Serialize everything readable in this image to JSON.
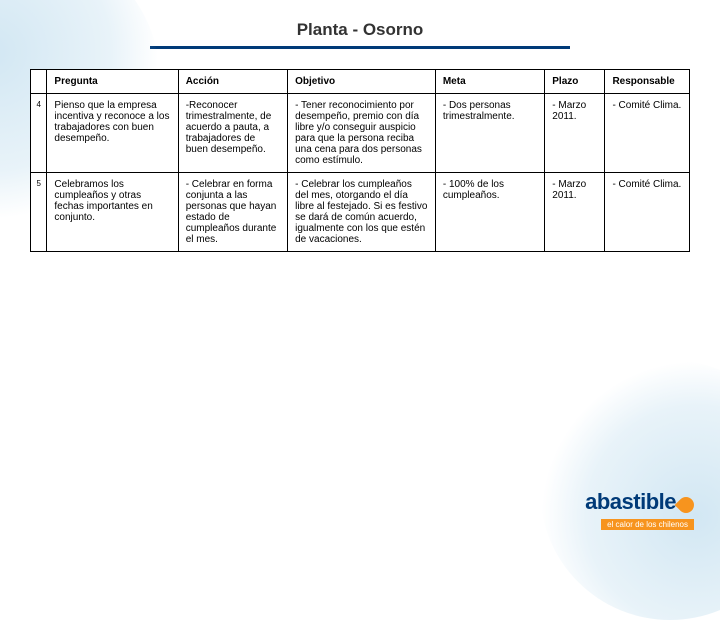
{
  "title": "Planta - Osorno",
  "title_underline_color": "#003a78",
  "background_color": "#ffffff",
  "bg_accent_color": "#b5d7eb",
  "table": {
    "headers": {
      "num": "",
      "pregunta": "Pregunta",
      "accion": "Acción",
      "objetivo": "Objetivo",
      "meta": "Meta",
      "plazo": "Plazo",
      "responsable": "Responsable"
    },
    "rows": [
      {
        "num": "4",
        "pregunta": "Pienso que la empresa incentiva y reconoce a los trabajadores con buen desempeño.",
        "accion": "-Reconocer trimestralmente, de acuerdo a pauta, a trabajadores de buen desempeño.",
        "objetivo": "- Tener reconocimiento por desempeño, premio con día libre y/o conseguir auspicio para que la persona reciba una cena para dos personas como estímulo.",
        "meta": "- Dos personas trimestralmente.",
        "plazo": "- Marzo 2011.",
        "responsable": "- Comité Clima."
      },
      {
        "num": "5",
        "pregunta": "Celebramos los cumpleaños y otras fechas importantes en conjunto.",
        "accion": "- Celebrar en forma conjunta a las personas que hayan estado de cumpleaños durante el mes.",
        "objetivo": "- Celebrar los cumpleaños del mes, otorgando el día libre al festejado. Si es festivo se dará de común acuerdo, igualmente con los que estén de vacaciones.",
        "meta": "- 100% de los cumpleaños.",
        "plazo": "- Marzo 2011.",
        "responsable": "- Comité Clima."
      }
    ],
    "border_color": "#000000",
    "cell_bg": "#ffffff",
    "font_size_pt": 8,
    "header_font_weight": "bold"
  },
  "logo": {
    "brand": "abastible",
    "tagline": "el calor de los chilenos",
    "brand_color": "#003a78",
    "flame_color": "#f7941e",
    "tag_bg": "#f7941e",
    "tag_text_color": "#ffffff"
  }
}
